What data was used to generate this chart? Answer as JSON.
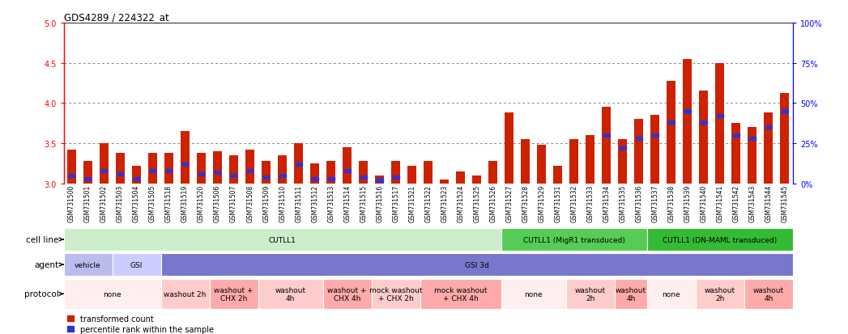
{
  "title": "GDS4289 / 224322_at",
  "samples": [
    "GSM731500",
    "GSM731501",
    "GSM731502",
    "GSM731503",
    "GSM731504",
    "GSM731505",
    "GSM731518",
    "GSM731519",
    "GSM731520",
    "GSM731506",
    "GSM731507",
    "GSM731508",
    "GSM731509",
    "GSM731510",
    "GSM731511",
    "GSM731512",
    "GSM731513",
    "GSM731514",
    "GSM731515",
    "GSM731516",
    "GSM731517",
    "GSM731521",
    "GSM731522",
    "GSM731523",
    "GSM731524",
    "GSM731525",
    "GSM731526",
    "GSM731527",
    "GSM731528",
    "GSM731529",
    "GSM731531",
    "GSM731532",
    "GSM731533",
    "GSM731534",
    "GSM731535",
    "GSM731536",
    "GSM731537",
    "GSM731538",
    "GSM731539",
    "GSM731540",
    "GSM731541",
    "GSM731542",
    "GSM731543",
    "GSM731544",
    "GSM731545"
  ],
  "bar_values": [
    3.42,
    3.28,
    3.5,
    3.38,
    3.22,
    3.38,
    3.38,
    3.65,
    3.38,
    3.4,
    3.35,
    3.42,
    3.28,
    3.35,
    3.5,
    3.25,
    3.28,
    3.45,
    3.28,
    3.1,
    3.28,
    3.22,
    3.28,
    3.05,
    3.15,
    3.1,
    3.28,
    3.88,
    3.55,
    3.48,
    3.22,
    3.55,
    3.6,
    3.95,
    3.55,
    3.8,
    3.85,
    4.28,
    4.55,
    4.15,
    4.5,
    3.75,
    3.7,
    3.88,
    4.12
  ],
  "percentile_values": [
    5,
    3,
    8,
    6,
    3,
    8,
    8,
    12,
    6,
    7,
    5,
    8,
    4,
    5,
    12,
    3,
    3,
    8,
    4,
    2,
    4,
    null,
    null,
    null,
    null,
    null,
    null,
    null,
    null,
    null,
    null,
    null,
    null,
    30,
    22,
    28,
    30,
    38,
    45,
    38,
    42,
    30,
    28,
    35,
    45
  ],
  "ylim_left": [
    3.0,
    5.0
  ],
  "ylim_right": [
    0,
    100
  ],
  "yticks_left": [
    3.0,
    3.5,
    4.0,
    4.5,
    5.0
  ],
  "yticks_right": [
    0,
    25,
    50,
    75,
    100
  ],
  "ytick_labels_right": [
    "0%",
    "25%",
    "50%",
    "75%",
    "100%"
  ],
  "dotted_lines": [
    3.5,
    4.0,
    4.5
  ],
  "bar_color": "#cc2200",
  "percentile_color": "#3333cc",
  "bar_bottom": 3.0,
  "cell_line_groups": [
    {
      "label": "CUTLL1",
      "start": 0,
      "end": 26,
      "color": "#cceecc"
    },
    {
      "label": "CUTLL1 (MigR1 transduced)",
      "start": 27,
      "end": 35,
      "color": "#55cc55"
    },
    {
      "label": "CUTLL1 (DN-MAML transduced)",
      "start": 36,
      "end": 44,
      "color": "#33bb33"
    }
  ],
  "agent_groups": [
    {
      "label": "vehicle",
      "start": 0,
      "end": 2,
      "color": "#bbbbee"
    },
    {
      "label": "GSI",
      "start": 3,
      "end": 5,
      "color": "#ccccff"
    },
    {
      "label": "GSI 3d",
      "start": 6,
      "end": 44,
      "color": "#7777cc"
    }
  ],
  "protocol_groups": [
    {
      "label": "none",
      "start": 0,
      "end": 5,
      "color": "#ffeeee"
    },
    {
      "label": "washout 2h",
      "start": 6,
      "end": 8,
      "color": "#ffcccc"
    },
    {
      "label": "washout +\nCHX 2h",
      "start": 9,
      "end": 11,
      "color": "#ffaaaa"
    },
    {
      "label": "washout\n4h",
      "start": 12,
      "end": 15,
      "color": "#ffcccc"
    },
    {
      "label": "washout +\nCHX 4h",
      "start": 16,
      "end": 18,
      "color": "#ffaaaa"
    },
    {
      "label": "mock washout\n+ CHX 2h",
      "start": 19,
      "end": 21,
      "color": "#ffcccc"
    },
    {
      "label": "mock washout\n+ CHX 4h",
      "start": 22,
      "end": 26,
      "color": "#ffaaaa"
    },
    {
      "label": "none",
      "start": 27,
      "end": 30,
      "color": "#ffeeee"
    },
    {
      "label": "washout\n2h",
      "start": 31,
      "end": 33,
      "color": "#ffcccc"
    },
    {
      "label": "washout\n4h",
      "start": 34,
      "end": 35,
      "color": "#ffaaaa"
    },
    {
      "label": "none",
      "start": 36,
      "end": 38,
      "color": "#ffeeee"
    },
    {
      "label": "washout\n2h",
      "start": 39,
      "end": 41,
      "color": "#ffcccc"
    },
    {
      "label": "washout\n4h",
      "start": 42,
      "end": 44,
      "color": "#ffaaaa"
    }
  ],
  "bg_color": "#ffffff",
  "chart_bg": "#ffffff",
  "tick_bg": "#dddddd"
}
